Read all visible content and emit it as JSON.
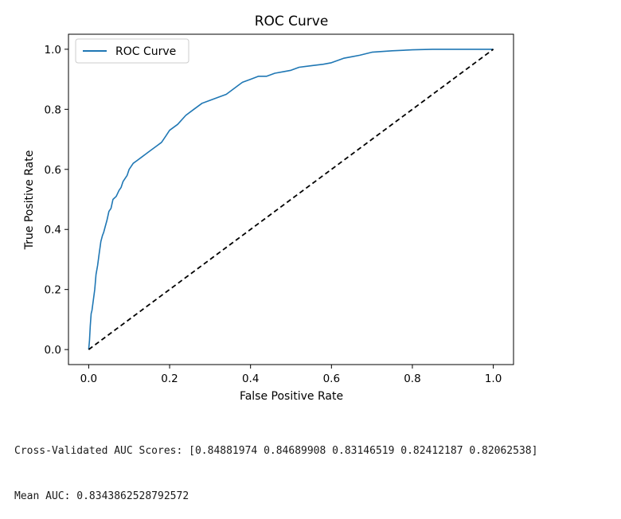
{
  "chart_data": {
    "type": "line",
    "title": "ROC Curve",
    "xlabel": "False Positive Rate",
    "ylabel": "True Positive Rate",
    "xlim": [
      -0.05,
      1.05
    ],
    "ylim": [
      -0.05,
      1.05
    ],
    "xticks": [
      "0.0",
      "0.2",
      "0.4",
      "0.6",
      "0.8",
      "1.0"
    ],
    "yticks": [
      "0.0",
      "0.2",
      "0.4",
      "0.6",
      "0.8",
      "1.0"
    ],
    "grid": false,
    "legend": {
      "position": "upper-left",
      "entries": [
        "ROC Curve"
      ]
    },
    "series": [
      {
        "name": "ROC Curve",
        "color": "#1f77b4",
        "style": "solid",
        "x": [
          0.0,
          0.002,
          0.004,
          0.006,
          0.008,
          0.012,
          0.015,
          0.018,
          0.022,
          0.026,
          0.03,
          0.034,
          0.037,
          0.041,
          0.045,
          0.05,
          0.055,
          0.06,
          0.068,
          0.075,
          0.08,
          0.085,
          0.095,
          0.1,
          0.11,
          0.12,
          0.13,
          0.14,
          0.15,
          0.16,
          0.17,
          0.18,
          0.19,
          0.2,
          0.22,
          0.24,
          0.26,
          0.28,
          0.3,
          0.32,
          0.34,
          0.36,
          0.37,
          0.38,
          0.4,
          0.42,
          0.44,
          0.46,
          0.48,
          0.5,
          0.52,
          0.55,
          0.58,
          0.6,
          0.63,
          0.65,
          0.67,
          0.7,
          0.75,
          0.8,
          0.85,
          0.88,
          0.9,
          0.93,
          0.96,
          1.0
        ],
        "y": [
          0.0,
          0.03,
          0.08,
          0.12,
          0.13,
          0.17,
          0.2,
          0.25,
          0.28,
          0.32,
          0.36,
          0.38,
          0.39,
          0.41,
          0.43,
          0.46,
          0.47,
          0.5,
          0.51,
          0.53,
          0.54,
          0.56,
          0.58,
          0.6,
          0.62,
          0.63,
          0.64,
          0.65,
          0.66,
          0.67,
          0.68,
          0.69,
          0.71,
          0.73,
          0.75,
          0.78,
          0.8,
          0.82,
          0.83,
          0.84,
          0.85,
          0.87,
          0.88,
          0.89,
          0.9,
          0.91,
          0.91,
          0.92,
          0.925,
          0.93,
          0.94,
          0.945,
          0.95,
          0.955,
          0.97,
          0.975,
          0.98,
          0.99,
          0.995,
          0.998,
          1.0,
          1.0,
          1.0,
          1.0,
          1.0,
          1.0
        ]
      },
      {
        "color": "#000000",
        "style": "dashed",
        "x": [
          0.0,
          1.0
        ],
        "y": [
          0.0,
          1.0
        ]
      }
    ]
  },
  "output": {
    "cv_scores_line": "Cross-Validated AUC Scores: [0.84881974 0.84689908 0.83146519 0.82412187 0.82062538]",
    "mean_auc_line": "Mean AUC: 0.8343862528792572"
  }
}
